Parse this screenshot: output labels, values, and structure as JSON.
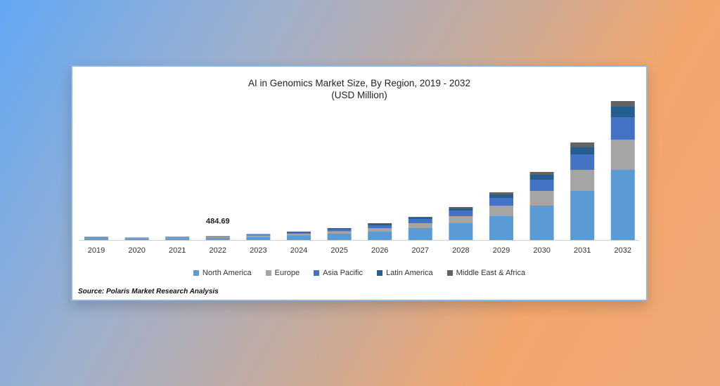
{
  "chart_data": {
    "type": "bar",
    "stacked": true,
    "title": "AI in Genomics Market Size, By Region, 2019 - 2032",
    "subtitle": "(USD Million)",
    "xlabel": "",
    "ylabel": "",
    "ylim": [
      0,
      17424
    ],
    "grid": false,
    "legend_position": "bottom",
    "categories": [
      "2019",
      "2020",
      "2021",
      "2022",
      "2023",
      "2024",
      "2025",
      "2026",
      "2027",
      "2028",
      "2029",
      "2030",
      "2031",
      "2032"
    ],
    "series": [
      {
        "name": "North America",
        "color": "#5b9bd5",
        "values": [
          220,
          176,
          225,
          264,
          405,
          572,
          792,
          1056,
          1496,
          2112,
          2992,
          4312,
          6160,
          8800
        ]
      },
      {
        "name": "Europe",
        "color": "#a5a5a5",
        "values": [
          88,
          70,
          90,
          106,
          158,
          220,
          308,
          440,
          616,
          880,
          1320,
          1848,
          2640,
          3784
        ]
      },
      {
        "name": "Asia Pacific",
        "color": "#4472c4",
        "values": [
          62,
          44,
          63,
          79,
          123,
          176,
          264,
          352,
          528,
          704,
          968,
          1408,
          1936,
          2816
        ]
      },
      {
        "name": "Latin America",
        "color": "#255e91",
        "values": [
          18,
          13,
          18,
          26,
          44,
          62,
          88,
          176,
          176,
          264,
          440,
          616,
          880,
          1320
        ]
      },
      {
        "name": "Middle East & Africa",
        "color": "#636363",
        "values": [
          9,
          4,
          9,
          9.69,
          18,
          26,
          44,
          88,
          88,
          176,
          264,
          352,
          616,
          704
        ]
      }
    ],
    "annotations": [
      {
        "category": "2022",
        "text": "484.69"
      }
    ],
    "source": "Source: Polaris Market Research Analysis"
  }
}
